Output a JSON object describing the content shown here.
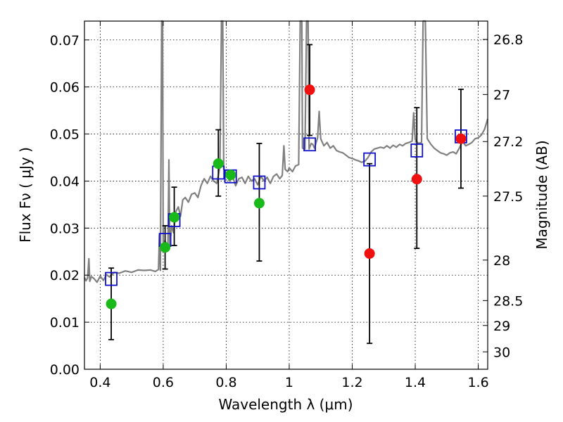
{
  "chart_data": {
    "type": "scatter",
    "xlabel": "Wavelength  λ (μm)",
    "ylabel": "Flux  Fν  ( μJy )",
    "ylabel2": "Magnitude (AB)",
    "xlim": [
      0.35,
      1.63
    ],
    "ylim": [
      0.0,
      0.074
    ],
    "x_ticks": [
      0.4,
      0.6,
      0.8,
      1.0,
      1.2,
      1.4,
      1.6
    ],
    "x_tick_labels": [
      "0.4",
      "0.6",
      "0.8",
      "1",
      "1.2",
      "1.4",
      "1.6"
    ],
    "y_ticks": [
      0.0,
      0.01,
      0.02,
      0.03,
      0.04,
      0.05,
      0.06,
      0.07
    ],
    "y_tick_labels": [
      "0.00",
      "0.01",
      "0.02",
      "0.03",
      "0.04",
      "0.05",
      "0.06",
      "0.07"
    ],
    "mag_ticks": [
      {
        "label": "26.8",
        "flux": 0.0701
      },
      {
        "label": "27",
        "flux": 0.0584
      },
      {
        "label": "27.2",
        "flux": 0.0484
      },
      {
        "label": "27.5",
        "flux": 0.0368
      },
      {
        "label": "28",
        "flux": 0.0232
      },
      {
        "label": "28.5",
        "flux": 0.0146
      },
      {
        "label": "29",
        "flux": 0.0093
      },
      {
        "label": "30",
        "flux": 0.0037
      }
    ],
    "grid": true,
    "colors": {
      "spectrum": "#808080",
      "green": "#19b919",
      "red": "#f01010",
      "model": "#1010cc",
      "errorbar": "#000000"
    },
    "spectrum": [
      [
        0.35,
        0.0195
      ],
      [
        0.355,
        0.0188
      ],
      [
        0.36,
        0.0194
      ],
      [
        0.364,
        0.0235
      ],
      [
        0.367,
        0.0187
      ],
      [
        0.372,
        0.0197
      ],
      [
        0.38,
        0.0193
      ],
      [
        0.39,
        0.0185
      ],
      [
        0.4,
        0.0198
      ],
      [
        0.41,
        0.0189
      ],
      [
        0.42,
        0.0201
      ],
      [
        0.43,
        0.0196
      ],
      [
        0.445,
        0.0206
      ],
      [
        0.46,
        0.0204
      ],
      [
        0.48,
        0.0209
      ],
      [
        0.5,
        0.0206
      ],
      [
        0.52,
        0.0211
      ],
      [
        0.54,
        0.021
      ],
      [
        0.56,
        0.0211
      ],
      [
        0.575,
        0.0208
      ],
      [
        0.585,
        0.0212
      ],
      [
        0.588,
        0.0285
      ],
      [
        0.591,
        0.021
      ],
      [
        0.595,
        0.074
      ],
      [
        0.598,
        0.074
      ],
      [
        0.6,
        0.027
      ],
      [
        0.605,
        0.0273
      ],
      [
        0.61,
        0.0268
      ],
      [
        0.615,
        0.0258
      ],
      [
        0.618,
        0.0445
      ],
      [
        0.621,
        0.0265
      ],
      [
        0.627,
        0.0305
      ],
      [
        0.633,
        0.029
      ],
      [
        0.64,
        0.0335
      ],
      [
        0.648,
        0.0345
      ],
      [
        0.655,
        0.0325
      ],
      [
        0.662,
        0.036
      ],
      [
        0.67,
        0.0365
      ],
      [
        0.68,
        0.0355
      ],
      [
        0.69,
        0.0372
      ],
      [
        0.7,
        0.0375
      ],
      [
        0.71,
        0.0365
      ],
      [
        0.72,
        0.039
      ],
      [
        0.73,
        0.0405
      ],
      [
        0.74,
        0.0395
      ],
      [
        0.75,
        0.041
      ],
      [
        0.76,
        0.04
      ],
      [
        0.77,
        0.0395
      ],
      [
        0.775,
        0.0412
      ],
      [
        0.78,
        0.043
      ],
      [
        0.785,
        0.074
      ],
      [
        0.789,
        0.074
      ],
      [
        0.792,
        0.0425
      ],
      [
        0.8,
        0.0418
      ],
      [
        0.81,
        0.04
      ],
      [
        0.82,
        0.041
      ],
      [
        0.83,
        0.039
      ],
      [
        0.84,
        0.0405
      ],
      [
        0.85,
        0.0408
      ],
      [
        0.86,
        0.0395
      ],
      [
        0.87,
        0.041
      ],
      [
        0.88,
        0.04
      ],
      [
        0.89,
        0.0405
      ],
      [
        0.9,
        0.0392
      ],
      [
        0.91,
        0.041
      ],
      [
        0.92,
        0.04
      ],
      [
        0.93,
        0.0408
      ],
      [
        0.94,
        0.0395
      ],
      [
        0.95,
        0.041
      ],
      [
        0.96,
        0.0415
      ],
      [
        0.97,
        0.0405
      ],
      [
        0.978,
        0.0412
      ],
      [
        0.983,
        0.0475
      ],
      [
        0.987,
        0.0425
      ],
      [
        0.995,
        0.042
      ],
      [
        1.0,
        0.0428
      ],
      [
        1.01,
        0.042
      ],
      [
        1.02,
        0.0432
      ],
      [
        1.03,
        0.0435
      ],
      [
        1.035,
        0.074
      ],
      [
        1.04,
        0.074
      ],
      [
        1.042,
        0.047
      ],
      [
        1.05,
        0.0468
      ],
      [
        1.055,
        0.074
      ],
      [
        1.06,
        0.074
      ],
      [
        1.063,
        0.0468
      ],
      [
        1.07,
        0.048
      ],
      [
        1.075,
        0.0478
      ],
      [
        1.08,
        0.047
      ],
      [
        1.09,
        0.0492
      ],
      [
        1.095,
        0.0548
      ],
      [
        1.1,
        0.049
      ],
      [
        1.11,
        0.0475
      ],
      [
        1.12,
        0.0482
      ],
      [
        1.13,
        0.047
      ],
      [
        1.14,
        0.0475
      ],
      [
        1.15,
        0.0465
      ],
      [
        1.16,
        0.0462
      ],
      [
        1.17,
        0.046
      ],
      [
        1.18,
        0.0455
      ],
      [
        1.19,
        0.045
      ],
      [
        1.2,
        0.0448
      ],
      [
        1.21,
        0.0445
      ],
      [
        1.22,
        0.0443
      ],
      [
        1.23,
        0.044
      ],
      [
        1.24,
        0.0442
      ],
      [
        1.25,
        0.045
      ],
      [
        1.26,
        0.0462
      ],
      [
        1.27,
        0.0468
      ],
      [
        1.28,
        0.047
      ],
      [
        1.29,
        0.0472
      ],
      [
        1.3,
        0.047
      ],
      [
        1.31,
        0.0475
      ],
      [
        1.32,
        0.047
      ],
      [
        1.33,
        0.0476
      ],
      [
        1.34,
        0.0472
      ],
      [
        1.35,
        0.0478
      ],
      [
        1.36,
        0.0475
      ],
      [
        1.37,
        0.048
      ],
      [
        1.38,
        0.0482
      ],
      [
        1.39,
        0.0485
      ],
      [
        1.395,
        0.0545
      ],
      [
        1.4,
        0.0488
      ],
      [
        1.41,
        0.048
      ],
      [
        1.42,
        0.0482
      ],
      [
        1.425,
        0.074
      ],
      [
        1.432,
        0.074
      ],
      [
        1.438,
        0.049
      ],
      [
        1.45,
        0.0478
      ],
      [
        1.46,
        0.047
      ],
      [
        1.47,
        0.0465
      ],
      [
        1.48,
        0.046
      ],
      [
        1.49,
        0.0458
      ],
      [
        1.5,
        0.0455
      ],
      [
        1.51,
        0.046
      ],
      [
        1.52,
        0.0462
      ],
      [
        1.53,
        0.0458
      ],
      [
        1.54,
        0.047
      ],
      [
        1.55,
        0.0485
      ],
      [
        1.56,
        0.0475
      ],
      [
        1.57,
        0.0478
      ],
      [
        1.58,
        0.0482
      ],
      [
        1.59,
        0.049
      ],
      [
        1.6,
        0.0492
      ],
      [
        1.61,
        0.0498
      ],
      [
        1.62,
        0.051
      ],
      [
        1.63,
        0.0532
      ]
    ],
    "observed_green": [
      {
        "x": 0.435,
        "y": 0.0139,
        "err_low": 0.0063,
        "err_high": 0.0215
      },
      {
        "x": 0.606,
        "y": 0.0259,
        "err_low": 0.0213,
        "err_high": 0.0305
      },
      {
        "x": 0.635,
        "y": 0.0323,
        "err_low": 0.0263,
        "err_high": 0.0387
      },
      {
        "x": 0.775,
        "y": 0.0437,
        "err_low": 0.0368,
        "err_high": 0.0509
      },
      {
        "x": 0.814,
        "y": 0.0413
      },
      {
        "x": 0.905,
        "y": 0.0353,
        "err_low": 0.023,
        "err_high": 0.048
      }
    ],
    "observed_red": [
      {
        "x": 1.065,
        "y": 0.0594,
        "err_low": 0.0497,
        "err_high": 0.069
      },
      {
        "x": 1.255,
        "y": 0.0246,
        "err_low": 0.0055,
        "err_high": 0.0437
      },
      {
        "x": 1.405,
        "y": 0.0404,
        "err_low": 0.0257,
        "err_high": 0.0556
      },
      {
        "x": 1.545,
        "y": 0.049,
        "err_low": 0.0385,
        "err_high": 0.0595
      }
    ],
    "model_squares": [
      {
        "x": 0.435,
        "y": 0.0192
      },
      {
        "x": 0.606,
        "y": 0.0275
      },
      {
        "x": 0.635,
        "y": 0.0317
      },
      {
        "x": 0.775,
        "y": 0.0418
      },
      {
        "x": 0.814,
        "y": 0.041
      },
      {
        "x": 0.905,
        "y": 0.0397
      },
      {
        "x": 1.065,
        "y": 0.0478
      },
      {
        "x": 1.255,
        "y": 0.0446
      },
      {
        "x": 1.405,
        "y": 0.0465
      },
      {
        "x": 1.545,
        "y": 0.0495
      }
    ]
  }
}
